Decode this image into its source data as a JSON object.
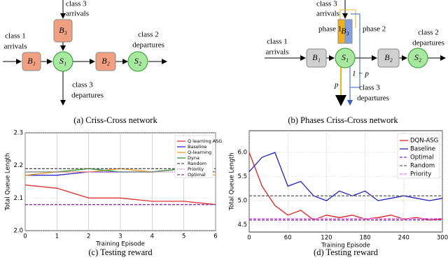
{
  "diagrams": {
    "a": {
      "class3_top": "class 3",
      "class3_arr": "arrivals",
      "class1": "class 1",
      "class1_arr": "arrivals",
      "class2": "class 2",
      "class2_dep": "departures",
      "class3_bot": "class 3",
      "class3_dep": "departures",
      "B1": "B₁",
      "B2": "B₂",
      "B3": "B₃",
      "S1": "S₁",
      "S2": "S₂",
      "caption": "(a) Criss-Cross network"
    },
    "b": {
      "class3_top": "class 3",
      "class3_arr": "arrivals",
      "class1": "class 1",
      "class1_arr": "arrivals",
      "class2": "class 2",
      "class2_dep": "departures",
      "class3_bot": "class 3",
      "class3_dep": "departures",
      "phase1": "phase 1",
      "phase2": "phase 2",
      "one_minus_p": "1 − p",
      "p": "p",
      "B1": "B₁",
      "B2": "B₂",
      "B3": "B₃",
      "S1": "S₁",
      "S2": "S₂",
      "caption": "(b) Phases Criss-Cross network"
    }
  },
  "chart_data": [
    {
      "type": "line",
      "caption": "(c) Testing reward",
      "x_label": "Training Episode",
      "y_label": "Total Queue Length",
      "x": [
        0,
        1,
        2,
        3,
        4,
        5,
        6
      ],
      "xlim": [
        0,
        6
      ],
      "xticks": [
        0,
        1,
        2,
        3,
        4,
        5,
        6
      ],
      "ylim": [
        2.0,
        2.3
      ],
      "yticks": [
        {
          "value": 2.0,
          "label": "2.0"
        },
        2.1,
        2.2,
        2.3
      ],
      "grid": true,
      "legend": "upper right",
      "series": [
        {
          "name": "Q learning ASG",
          "color": "#e03030",
          "style": "solid",
          "values": [
            2.14,
            2.13,
            2.1,
            2.1,
            2.09,
            2.09,
            2.08
          ]
        },
        {
          "name": "Baseline",
          "color": "#2a2ad0",
          "style": "solid",
          "values": [
            2.17,
            2.17,
            2.18,
            2.18,
            2.18,
            2.19,
            2.18
          ]
        },
        {
          "name": "Q-learning",
          "color": "#f0a020",
          "style": "solid",
          "values": [
            2.17,
            2.18,
            2.18,
            2.19,
            2.18,
            2.19,
            2.17
          ]
        },
        {
          "name": "Dyna",
          "color": "#2a9a2a",
          "style": "solid",
          "values": [
            2.18,
            2.18,
            2.19,
            2.18,
            2.18,
            2.19,
            2.18
          ]
        },
        {
          "name": "Random",
          "color": "#555555",
          "style": "dashed",
          "values": [
            2.19,
            2.19,
            2.19,
            2.19,
            2.19,
            2.19,
            2.19
          ]
        },
        {
          "name": "Priority",
          "color": "#e070e0",
          "style": "dotted",
          "values": [
            2.18,
            2.18,
            2.18,
            2.18,
            2.18,
            2.18,
            2.18
          ]
        },
        {
          "name": "Optimal",
          "color": "#9030a0",
          "style": "dashed",
          "values": [
            2.08,
            2.08,
            2.08,
            2.08,
            2.08,
            2.08,
            2.08
          ]
        }
      ]
    },
    {
      "type": "line",
      "caption": "(d) Testing reward",
      "x_label": "Training Episode",
      "y_label": "Total Queue Length",
      "x": [
        0,
        20,
        40,
        60,
        80,
        100,
        120,
        140,
        160,
        180,
        200,
        220,
        240,
        260,
        280,
        300
      ],
      "xlim": [
        0,
        300
      ],
      "xticks": [
        0,
        60,
        120,
        180,
        240,
        300
      ],
      "ylim": [
        4.35,
        6.45
      ],
      "yticks": [
        4.5,
        {
          "value": 5.0,
          "label": "5.0"
        },
        5.5,
        {
          "value": 6.0,
          "label": "6.0"
        }
      ],
      "grid": true,
      "legend": "upper right",
      "series": [
        {
          "name": "DQN-ASG",
          "color": "#e02020",
          "style": "solid",
          "values": [
            6.0,
            5.3,
            4.9,
            4.7,
            4.8,
            4.6,
            4.7,
            4.65,
            4.7,
            4.62,
            4.65,
            4.7,
            4.62,
            4.65,
            4.6,
            4.62
          ]
        },
        {
          "name": "Baseline",
          "color": "#2020c0",
          "style": "solid",
          "values": [
            5.6,
            5.9,
            6.0,
            5.3,
            5.4,
            5.1,
            5.0,
            5.2,
            5.1,
            5.2,
            5.0,
            5.05,
            5.1,
            5.05,
            5.0,
            5.05
          ]
        },
        {
          "name": "Optimal",
          "color": "#8020a0",
          "style": "dashed",
          "values": [
            4.6,
            4.6,
            4.6,
            4.6,
            4.6,
            4.6,
            4.6,
            4.6,
            4.6,
            4.6,
            4.6,
            4.6,
            4.6,
            4.6,
            4.6,
            4.6
          ]
        },
        {
          "name": "Random",
          "color": "#666666",
          "style": "dashed",
          "values": [
            5.1,
            5.1,
            5.1,
            5.1,
            5.1,
            5.1,
            5.1,
            5.1,
            5.1,
            5.1,
            5.1,
            5.1,
            5.1,
            5.1,
            5.1,
            5.1
          ]
        },
        {
          "name": "Priority",
          "color": "#f060f0",
          "style": "dashed",
          "values": [
            4.63,
            4.63,
            4.63,
            4.63,
            4.63,
            4.63,
            4.63,
            4.63,
            4.63,
            4.63,
            4.63,
            4.63,
            4.63,
            4.63,
            4.63,
            4.63
          ]
        }
      ]
    }
  ]
}
